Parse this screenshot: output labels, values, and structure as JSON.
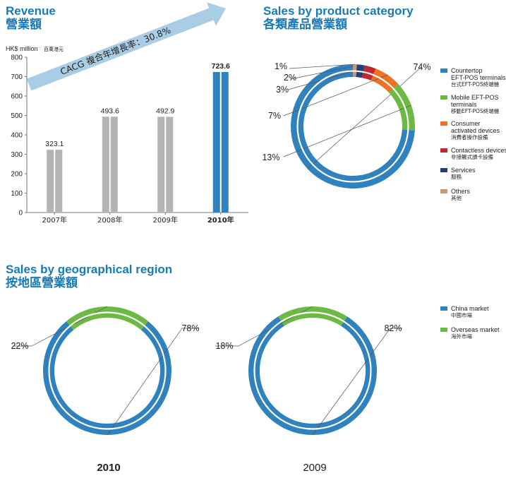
{
  "sections": {
    "revenue": {
      "title_en": "Revenue",
      "title_zh": "營業額"
    },
    "product": {
      "title_en": "Sales by product category",
      "title_zh": "各類產品營業額"
    },
    "region": {
      "title_en": "Sales by geographical region",
      "title_zh": "按地區營業額"
    }
  },
  "colors": {
    "title": "#1a7ab8",
    "bar_gray": "#b3b4b6",
    "bar_blue": "#2f82bd",
    "arrow": "#a9cde4",
    "blue": "#2f82bd",
    "green": "#6cb944",
    "orange": "#ee7125",
    "red": "#c4262e",
    "navy": "#233f7b",
    "tan": "#c49a7a"
  },
  "chart_data": [
    {
      "id": "revenue",
      "type": "bar",
      "ylabel": "HK$ million",
      "ylabel_zh": "百萬港元",
      "ylim": [
        0,
        800
      ],
      "yticks": [
        0,
        100,
        200,
        300,
        400,
        500,
        600,
        700,
        800
      ],
      "categories": [
        "2007年",
        "2008年",
        "2009年",
        "2010年"
      ],
      "values": [
        323.1,
        493.6,
        492.9,
        723.6
      ],
      "value_labels": [
        "323.1",
        "493.6",
        "492.9",
        "723.6"
      ],
      "highlight_index": 3,
      "annotation": "CACG 複合年增長率：30.8%"
    },
    {
      "id": "product",
      "type": "pie",
      "style": "donut",
      "slices": [
        {
          "label": "Countertop EFT-POS terminals",
          "label_zh": "台式EFT-POS終端機",
          "value": 74,
          "text": "74%",
          "color": "#2f82bd"
        },
        {
          "label": "Mobile EFT-POS terminals",
          "label_zh": "移動EFT-POS終端機",
          "value": 13,
          "text": "13%",
          "color": "#6cb944"
        },
        {
          "label": "Consumer activated devices",
          "label_zh": "消費者操作設備",
          "value": 7,
          "text": "7%",
          "color": "#ee7125"
        },
        {
          "label": "Contactless devices",
          "label_zh": "非接觸式讀卡設備",
          "value": 3,
          "text": "3%",
          "color": "#c4262e"
        },
        {
          "label": "Services",
          "label_zh": "服務",
          "value": 2,
          "text": "2%",
          "color": "#233f7b"
        },
        {
          "label": "Others",
          "label_zh": "其他",
          "value": 1,
          "text": "1%",
          "color": "#c49a7a"
        }
      ],
      "legend": [
        {
          "lines": [
            "Countertop",
            "EFT-POS terminals"
          ],
          "zh": "台式EFT-POS終端機",
          "color": "#2f82bd"
        },
        {
          "lines": [
            "Mobile EFT-POS",
            "terminals"
          ],
          "zh": "移動EFT-POS終端機",
          "color": "#6cb944"
        },
        {
          "lines": [
            "Consumer",
            "activated devices"
          ],
          "zh": "消費者操作設備",
          "color": "#ee7125"
        },
        {
          "lines": [
            "Contactless devices"
          ],
          "zh": "非接觸式讀卡設備",
          "color": "#c4262e"
        },
        {
          "lines": [
            "Services"
          ],
          "zh": "服務",
          "color": "#233f7b"
        },
        {
          "lines": [
            "Others"
          ],
          "zh": "其他",
          "color": "#c49a7a"
        }
      ]
    },
    {
      "id": "region-2010",
      "type": "pie",
      "style": "donut",
      "caption": "2010",
      "slices": [
        {
          "label": "China market",
          "value": 78,
          "text": "78%",
          "color": "#2f82bd"
        },
        {
          "label": "Overseas market",
          "value": 22,
          "text": "22%",
          "color": "#6cb944"
        }
      ]
    },
    {
      "id": "region-2009",
      "type": "pie",
      "style": "donut",
      "caption": "2009",
      "slices": [
        {
          "label": "China market",
          "value": 82,
          "text": "82%",
          "color": "#2f82bd"
        },
        {
          "label": "Overseas market",
          "value": 18,
          "text": "18%",
          "color": "#6cb944"
        }
      ]
    }
  ],
  "region_legend": [
    {
      "label": "China market",
      "zh": "中國市場",
      "color": "#2f82bd"
    },
    {
      "label": "Overseas market",
      "zh": "海外市場",
      "color": "#6cb944"
    }
  ]
}
